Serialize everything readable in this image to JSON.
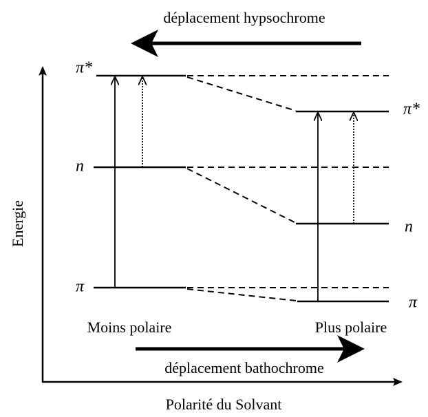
{
  "title_top": "déplacement hypsochrome",
  "left_levels": [
    "π*",
    "n",
    "π"
  ],
  "right_levels": [
    "π*",
    "n",
    "π"
  ],
  "y_axis_label": "Energie",
  "left_label": "Moins polaire",
  "right_label": "Plus polaire",
  "arrow_bottom_label": "déplacement bathochrome",
  "x_axis_label": "Polarité du Solvant"
}
